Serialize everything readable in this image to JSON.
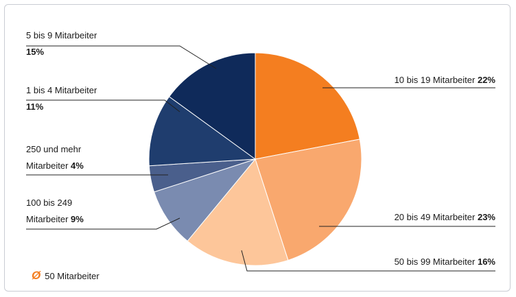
{
  "chart_data": {
    "type": "pie",
    "categories": [
      "10 bis 19 Mitarbeiter",
      "20 bis 49 Mitarbeiter",
      "50 bis 99 Mitarbeiter",
      "100 bis 249 Mitarbeiter",
      "250 und mehr Mitarbeiter",
      "1 bis 4 Mitarbeiter",
      "5 bis 9 Mitarbeiter"
    ],
    "values": [
      22,
      23,
      16,
      9,
      4,
      11,
      15
    ],
    "value_labels": [
      "22%",
      "23%",
      "16%",
      "9%",
      "4%",
      "11%",
      "15%"
    ],
    "colors": [
      "#f47e20",
      "#f9a86e",
      "#fdc69a",
      "#7a8bb0",
      "#4a5f8c",
      "#1f3d6e",
      "#0f2a5a"
    ],
    "annotation_symbol": "Ø",
    "annotation": "50 Mitarbeiter"
  }
}
